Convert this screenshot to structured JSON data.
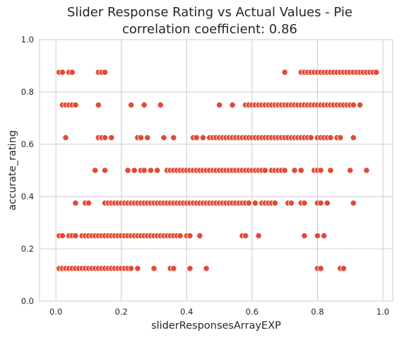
{
  "chart_data": {
    "type": "scatter",
    "title": "Slider Response Rating vs Actual Values - Pie",
    "subtitle": "correlation coefficient: 0.86",
    "xlabel": "sliderResponsesArrayEXP",
    "ylabel": "accurate_rating",
    "xlim": [
      -0.05,
      1.03
    ],
    "ylim": [
      0.0,
      1.0
    ],
    "x_ticks": [
      0.0,
      0.2,
      0.4,
      0.6,
      0.8,
      1.0
    ],
    "x_tick_labels": [
      "0.0",
      "0.2",
      "0.4",
      "0.6",
      "0.8",
      "1.0"
    ],
    "y_ticks": [
      0.0,
      0.2,
      0.4,
      0.6,
      0.8,
      1.0
    ],
    "y_tick_labels": [
      "0.0",
      "0.2",
      "0.4",
      "0.6",
      "0.8",
      "1.0"
    ],
    "grid": true,
    "style": "seaborn-whitegrid",
    "colors": {
      "marker": "#e24a33",
      "marker_edge": "#ffffff",
      "grid": "#cccccc",
      "axes_edge": "#cccccc"
    },
    "rows": [
      {
        "y": 0.875,
        "x": [
          0.01,
          0.02,
          0.04,
          0.05,
          0.13,
          0.14,
          0.15,
          0.7,
          0.75,
          0.76,
          0.77,
          0.78,
          0.79,
          0.8,
          0.81,
          0.82,
          0.83,
          0.84,
          0.85,
          0.86,
          0.87,
          0.88,
          0.89,
          0.9,
          0.91,
          0.92,
          0.93,
          0.94,
          0.95,
          0.96,
          0.97,
          0.98
        ]
      },
      {
        "y": 0.75,
        "x": [
          0.02,
          0.03,
          0.04,
          0.05,
          0.06,
          0.13,
          0.23,
          0.27,
          0.32,
          0.5,
          0.54,
          0.58,
          0.59,
          0.6,
          0.61,
          0.62,
          0.63,
          0.64,
          0.65,
          0.66,
          0.67,
          0.68,
          0.69,
          0.7,
          0.71,
          0.72,
          0.73,
          0.74,
          0.75,
          0.76,
          0.77,
          0.78,
          0.79,
          0.8,
          0.81,
          0.82,
          0.83,
          0.84,
          0.85,
          0.86,
          0.87,
          0.88,
          0.89,
          0.9,
          0.91,
          0.93
        ]
      },
      {
        "y": 0.625,
        "x": [
          0.03,
          0.13,
          0.14,
          0.15,
          0.17,
          0.25,
          0.26,
          0.28,
          0.33,
          0.36,
          0.42,
          0.43,
          0.45,
          0.47,
          0.48,
          0.49,
          0.5,
          0.51,
          0.52,
          0.53,
          0.54,
          0.55,
          0.56,
          0.57,
          0.58,
          0.59,
          0.6,
          0.61,
          0.62,
          0.63,
          0.64,
          0.65,
          0.66,
          0.67,
          0.68,
          0.69,
          0.7,
          0.71,
          0.72,
          0.73,
          0.74,
          0.75,
          0.76,
          0.77,
          0.78,
          0.8,
          0.81,
          0.82,
          0.83,
          0.84,
          0.86,
          0.87,
          0.91
        ]
      },
      {
        "y": 0.5,
        "x": [
          0.12,
          0.15,
          0.22,
          0.24,
          0.26,
          0.27,
          0.29,
          0.31,
          0.34,
          0.35,
          0.36,
          0.37,
          0.38,
          0.39,
          0.4,
          0.41,
          0.42,
          0.43,
          0.44,
          0.45,
          0.46,
          0.47,
          0.48,
          0.49,
          0.5,
          0.51,
          0.52,
          0.53,
          0.54,
          0.55,
          0.56,
          0.57,
          0.58,
          0.59,
          0.6,
          0.61,
          0.62,
          0.63,
          0.64,
          0.66,
          0.67,
          0.68,
          0.69,
          0.7,
          0.73,
          0.75,
          0.79,
          0.8,
          0.81,
          0.84,
          0.9,
          0.95
        ]
      },
      {
        "y": 0.375,
        "x": [
          0.06,
          0.09,
          0.1,
          0.15,
          0.16,
          0.17,
          0.18,
          0.19,
          0.2,
          0.21,
          0.22,
          0.23,
          0.24,
          0.25,
          0.26,
          0.27,
          0.28,
          0.29,
          0.3,
          0.31,
          0.32,
          0.33,
          0.34,
          0.35,
          0.36,
          0.37,
          0.38,
          0.39,
          0.4,
          0.41,
          0.42,
          0.43,
          0.44,
          0.45,
          0.46,
          0.47,
          0.48,
          0.49,
          0.5,
          0.51,
          0.52,
          0.53,
          0.54,
          0.55,
          0.56,
          0.57,
          0.58,
          0.59,
          0.61,
          0.63,
          0.64,
          0.65,
          0.66,
          0.67,
          0.71,
          0.72,
          0.75,
          0.76,
          0.8,
          0.81,
          0.83,
          0.91
        ]
      },
      {
        "y": 0.25,
        "x": [
          0.01,
          0.02,
          0.04,
          0.05,
          0.06,
          0.08,
          0.09,
          0.1,
          0.11,
          0.12,
          0.13,
          0.14,
          0.15,
          0.16,
          0.17,
          0.18,
          0.19,
          0.2,
          0.21,
          0.22,
          0.23,
          0.24,
          0.25,
          0.26,
          0.27,
          0.28,
          0.29,
          0.3,
          0.31,
          0.32,
          0.33,
          0.34,
          0.35,
          0.36,
          0.37,
          0.38,
          0.4,
          0.41,
          0.44,
          0.57,
          0.58,
          0.62,
          0.76,
          0.8,
          0.82
        ]
      },
      {
        "y": 0.125,
        "x": [
          0.01,
          0.02,
          0.03,
          0.04,
          0.05,
          0.06,
          0.07,
          0.08,
          0.09,
          0.1,
          0.11,
          0.12,
          0.13,
          0.14,
          0.15,
          0.16,
          0.17,
          0.18,
          0.19,
          0.2,
          0.21,
          0.22,
          0.23,
          0.25,
          0.3,
          0.35,
          0.36,
          0.41,
          0.46,
          0.8,
          0.81,
          0.87,
          0.88
        ]
      }
    ]
  }
}
